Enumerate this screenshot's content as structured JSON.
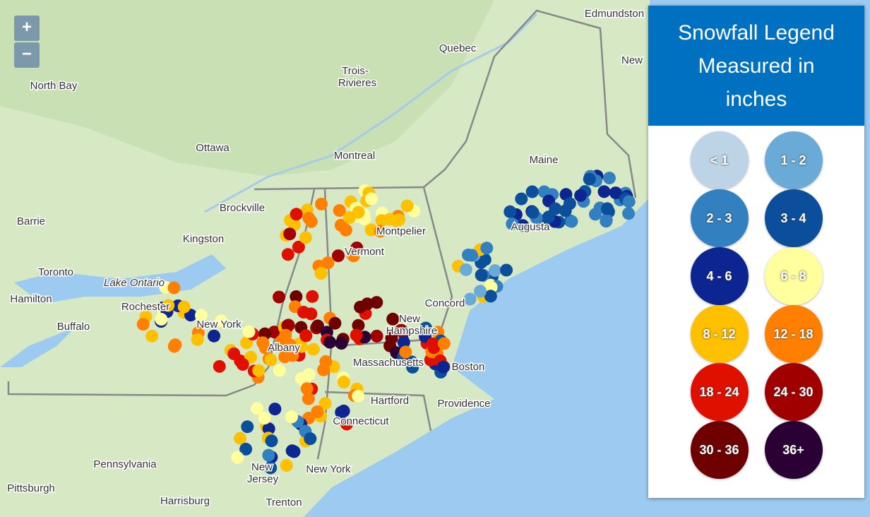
{
  "zoom": [
    "+",
    "−"
  ],
  "legend": {
    "title_lines": [
      "Snowfall Legend",
      "Measured in",
      "inches"
    ],
    "items": [
      {
        "label": "< 1",
        "color": "#bcd4e6"
      },
      {
        "label": "1 - 2",
        "color": "#6aaad6"
      },
      {
        "label": "2 - 3",
        "color": "#3380c0"
      },
      {
        "label": "3 - 4",
        "color": "#0b4f9c"
      },
      {
        "label": "4 - 6",
        "color": "#0d2590"
      },
      {
        "label": "6 - 8",
        "color": "#ffff9e"
      },
      {
        "label": "8 - 12",
        "color": "#ffc000"
      },
      {
        "label": "12 - 18",
        "color": "#ff8000"
      },
      {
        "label": "18 - 24",
        "color": "#e01000"
      },
      {
        "label": "24 - 30",
        "color": "#a00000"
      },
      {
        "label": "30 - 36",
        "color": "#6e0000"
      },
      {
        "label": "36+",
        "color": "#2a0035"
      }
    ]
  },
  "places": [
    "Edmundston",
    "Quebec",
    "Trois-",
    "Rivieres",
    "North Bay",
    "Ottawa",
    "Montreal",
    "Maine",
    "New",
    "Barrie",
    "Brockville",
    "Kingston",
    "Montpelier",
    "Vermont",
    "Augusta",
    "Toronto",
    "Lake Ontario",
    "Hamilton",
    "Rochester",
    "Concord",
    "New York",
    "New",
    "Hampshire",
    "Buffalo",
    "Albany",
    "Massachusetts",
    "Boston",
    "Hartford",
    "Providence",
    "Connecticut",
    "Pennsylvania",
    "New",
    "Jersey",
    "New York",
    "Pittsburgh",
    "Harrisburg",
    "Trenton"
  ]
}
